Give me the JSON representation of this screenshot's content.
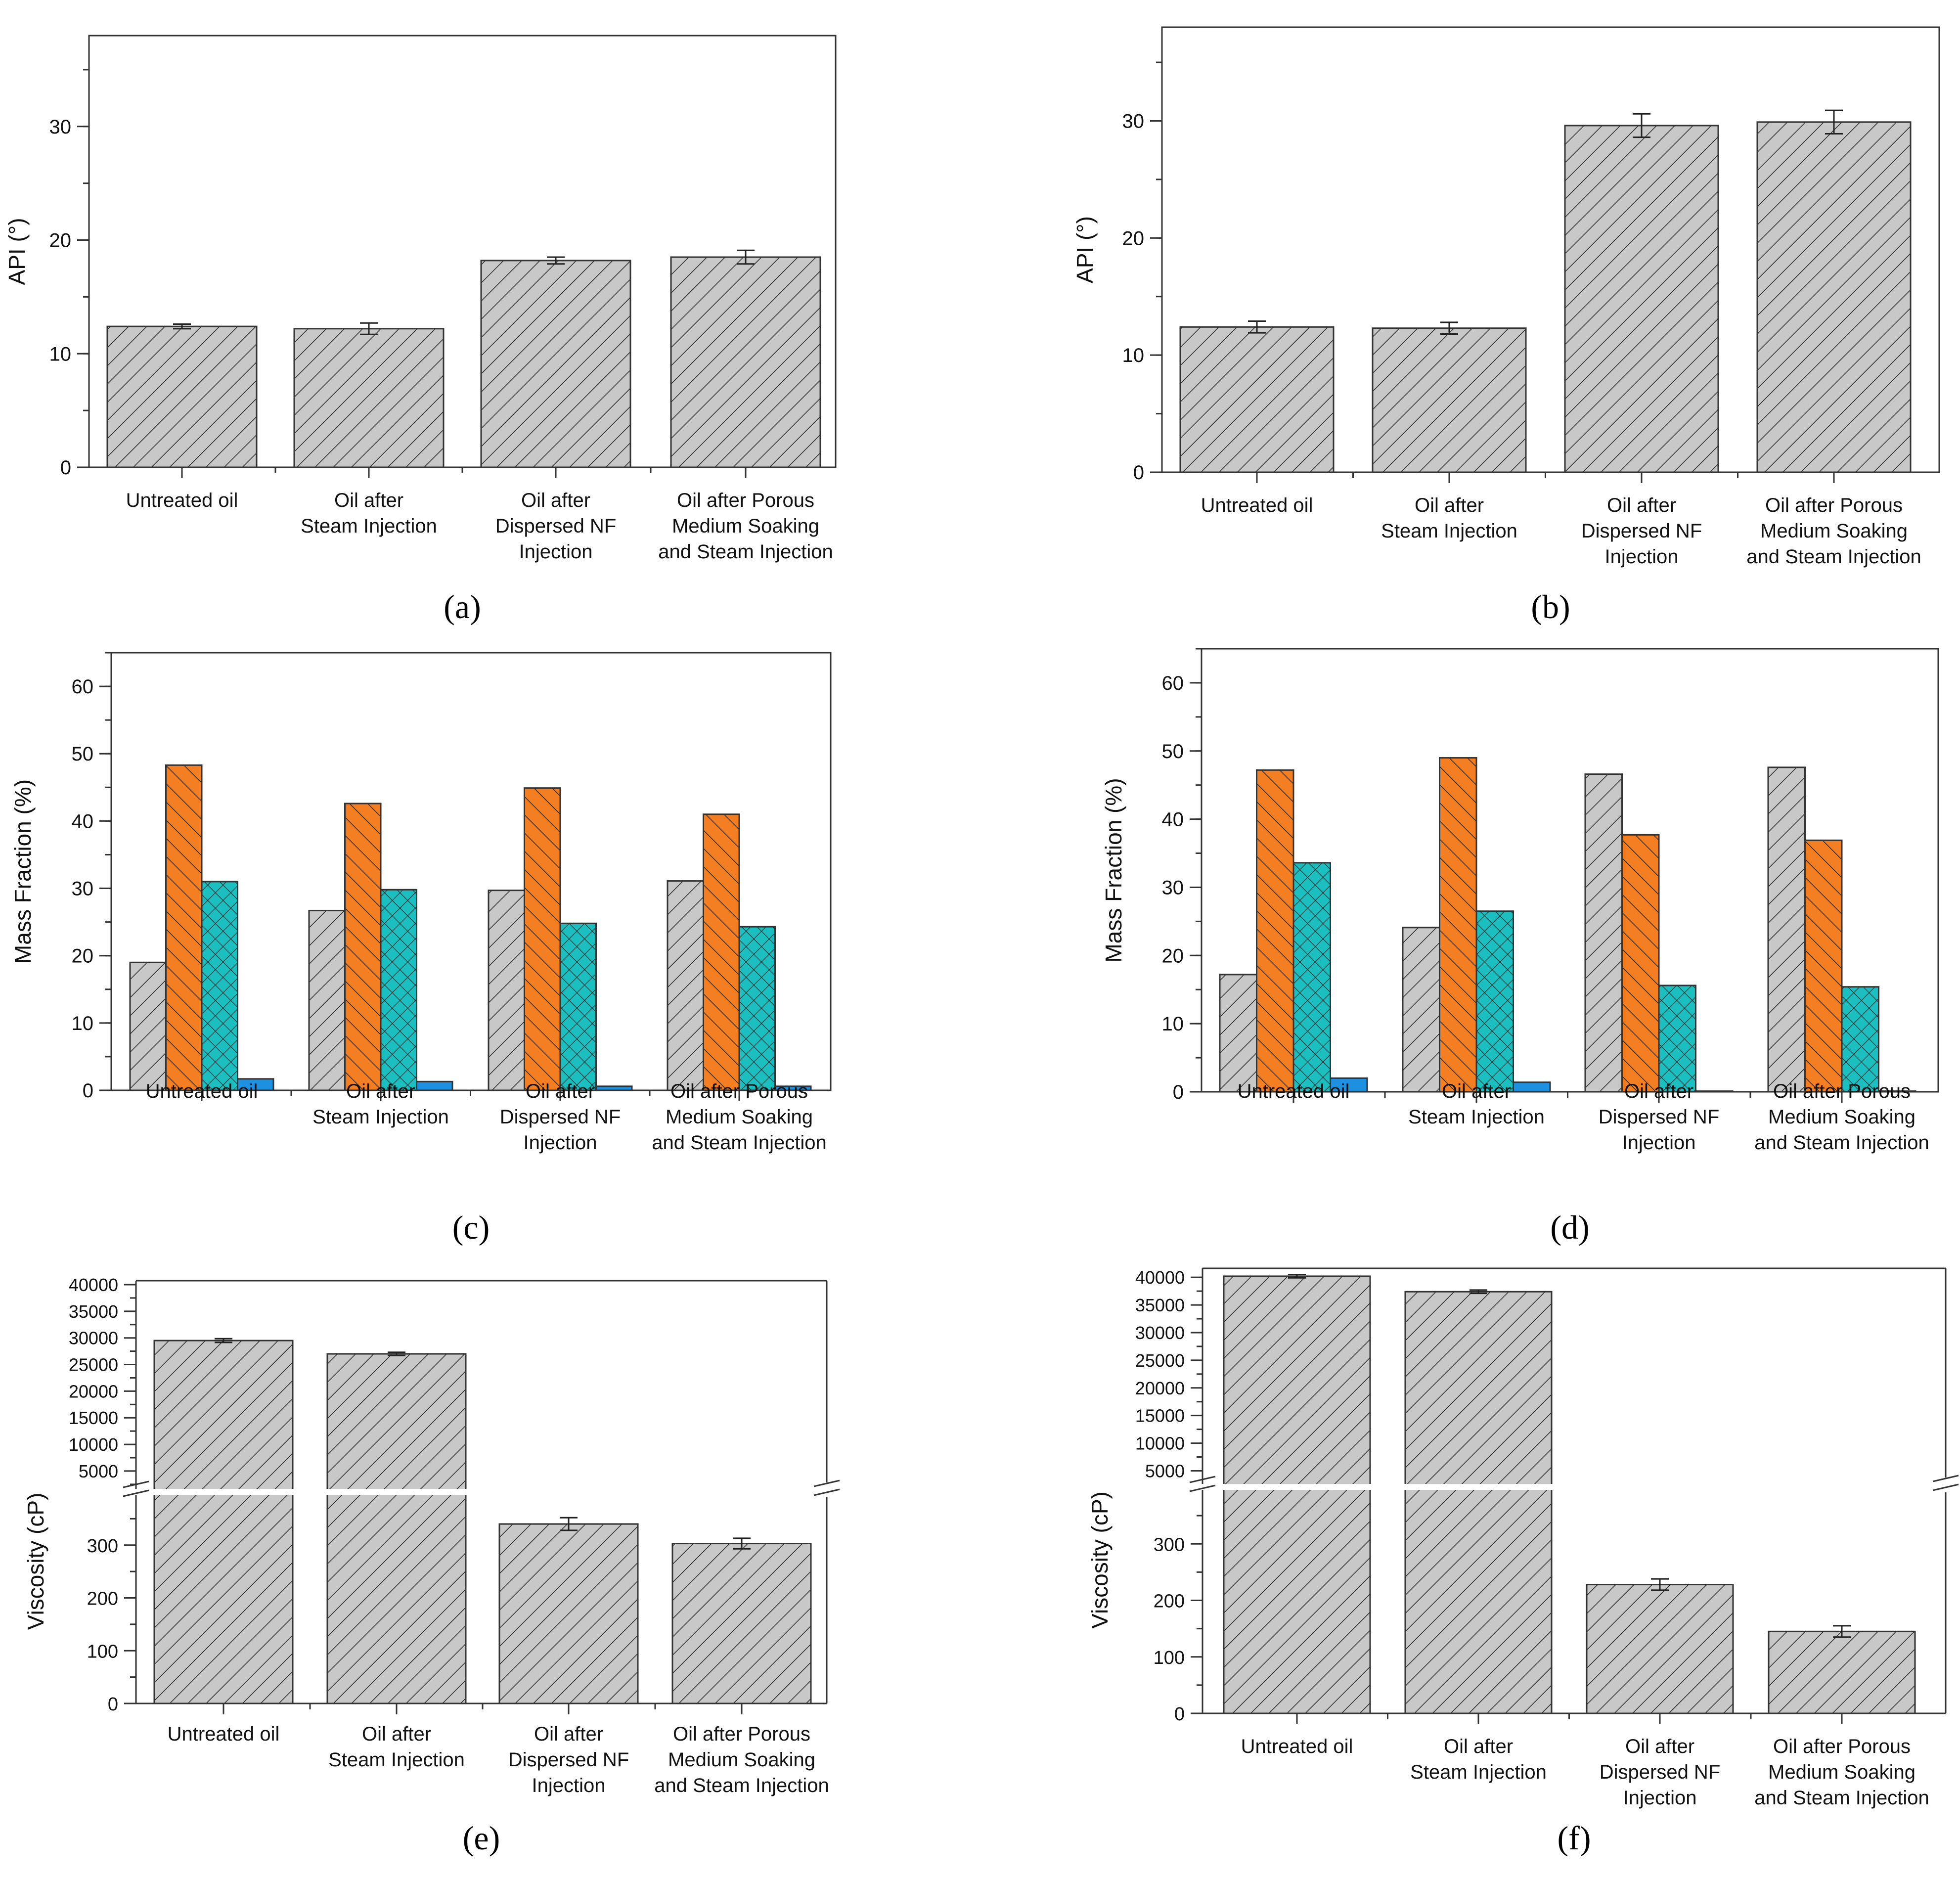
{
  "chart_data": [
    {
      "id": "a",
      "type": "bar",
      "panel_label": "(a)",
      "ylabel": "API (°)",
      "categories": [
        "Untreated oil",
        "Oil after Steam Injection",
        "Oil after Dispersed NF Injection",
        "Oil after Porous Medium Soaking and Steam Injection"
      ],
      "category_lines": [
        [
          "Untreated oil"
        ],
        [
          "Oil after",
          "Steam Injection"
        ],
        [
          "Oil after",
          "Dispersed NF",
          "Injection"
        ],
        [
          "Oil after Porous",
          "Medium Soaking",
          "and Steam Injection"
        ]
      ],
      "values": [
        12.4,
        12.2,
        18.2,
        18.5
      ],
      "error": [
        0.2,
        0.5,
        0.3,
        0.6
      ],
      "ylim": [
        0,
        38
      ],
      "yticks": [
        0,
        10,
        20,
        30
      ],
      "minor_step": 5,
      "grid": false,
      "pattern": "hatch-gray"
    },
    {
      "id": "b",
      "type": "bar",
      "panel_label": "(b)",
      "ylabel": "API (°)",
      "categories": [
        "Untreated oil",
        "Oil after Steam Injection",
        "Oil after Dispersed NF Injection",
        "Oil after Porous Medium Soaking and Steam Injection"
      ],
      "category_lines": [
        [
          "Untreated oil"
        ],
        [
          "Oil after",
          "Steam Injection"
        ],
        [
          "Oil after",
          "Dispersed NF",
          "Injection"
        ],
        [
          "Oil after Porous",
          "Medium Soaking",
          "and Steam Injection"
        ]
      ],
      "values": [
        12.4,
        12.3,
        29.6,
        29.9
      ],
      "error": [
        0.5,
        0.5,
        1.0,
        1.0
      ],
      "ylim": [
        0,
        38
      ],
      "yticks": [
        0,
        10,
        20,
        30
      ],
      "minor_step": 5,
      "grid": false,
      "pattern": "hatch-gray"
    },
    {
      "id": "c",
      "type": "bar",
      "panel_label": "(c)",
      "ylabel": "Mass Fraction (%)",
      "categories": [
        "Untreated oil",
        "Oil after Steam Injection",
        "Oil after Dispersed NF Injection",
        "Oil after Porous Medium Soaking and Steam Injection"
      ],
      "category_lines": [
        [
          "Untreated oil"
        ],
        [
          "Oil after",
          "Steam Injection"
        ],
        [
          "Oil after",
          "Dispersed NF",
          "Injection"
        ],
        [
          "Oil after Porous",
          "Medium Soaking",
          "and Steam Injection"
        ]
      ],
      "series": [
        {
          "values": [
            19.0,
            26.7,
            29.7,
            31.1
          ],
          "color": "#c8c8c8",
          "pattern": "hatch-gray"
        },
        {
          "values": [
            48.3,
            42.6,
            44.9,
            41.0
          ],
          "color": "#f47f22",
          "pattern": "hatch-orange"
        },
        {
          "values": [
            31.0,
            29.8,
            24.8,
            24.3
          ],
          "color": "#1bbfbf",
          "pattern": "cross-teal"
        },
        {
          "values": [
            1.7,
            1.3,
            0.6,
            0.6
          ],
          "color": "#1e90e0",
          "pattern": "solid-blue"
        }
      ],
      "ylim": [
        0,
        65
      ],
      "yticks": [
        0,
        10,
        20,
        30,
        40,
        50,
        60
      ],
      "minor_step": 5,
      "grid": false
    },
    {
      "id": "d",
      "type": "bar",
      "panel_label": "(d)",
      "ylabel": "Mass Fraction (%)",
      "categories": [
        "Untreated oil",
        "Oil after Steam Injection",
        "Oil after Dispersed NF Injection",
        "Oil after Porous Medium Soaking and Steam Injection"
      ],
      "category_lines": [
        [
          "Untreated oil"
        ],
        [
          "Oil after",
          "Steam Injection"
        ],
        [
          "Oil after",
          "Dispersed NF",
          "Injection"
        ],
        [
          "Oil after Porous",
          "Medium Soaking",
          "and Steam Injection"
        ]
      ],
      "series": [
        {
          "values": [
            17.2,
            24.1,
            46.6,
            47.6
          ],
          "color": "#c8c8c8",
          "pattern": "hatch-gray"
        },
        {
          "values": [
            47.2,
            49.0,
            37.7,
            36.9
          ],
          "color": "#f47f22",
          "pattern": "hatch-orange"
        },
        {
          "values": [
            33.6,
            26.5,
            15.6,
            15.4
          ],
          "color": "#1bbfbf",
          "pattern": "cross-teal"
        },
        {
          "values": [
            2.0,
            1.4,
            0.1,
            0.1
          ],
          "color": "#1e90e0",
          "pattern": "solid-blue"
        }
      ],
      "ylim": [
        0,
        65
      ],
      "yticks": [
        0,
        10,
        20,
        30,
        40,
        50,
        60
      ],
      "minor_step": 5,
      "grid": false
    },
    {
      "id": "e",
      "type": "bar",
      "panel_label": "(e)",
      "ylabel": "Viscosity (cP)",
      "categories": [
        "Untreated oil",
        "Oil after Steam Injection",
        "Oil after Dispersed NF Injection",
        "Oil after Porous Medium Soaking and Steam Injection"
      ],
      "category_lines": [
        [
          "Untreated oil"
        ],
        [
          "Oil after",
          "Steam Injection"
        ],
        [
          "Oil after",
          "Dispersed NF",
          "Injection"
        ],
        [
          "Oil after Porous",
          "Medium Soaking",
          "and Steam Injection"
        ]
      ],
      "values": [
        29500,
        27000,
        340,
        303
      ],
      "error": [
        350,
        300,
        12,
        10
      ],
      "axis_break": true,
      "ylim_lower": [
        0,
        400
      ],
      "ylim_upper": [
        1000,
        40000
      ],
      "yticks_lower": [
        0,
        100,
        200,
        300
      ],
      "yticks_upper": [
        5000,
        10000,
        15000,
        20000,
        25000,
        30000,
        35000,
        40000
      ],
      "grid": false,
      "pattern": "hatch-gray"
    },
    {
      "id": "f",
      "type": "bar",
      "panel_label": "(f)",
      "ylabel": "Viscosity (cP)",
      "categories": [
        "Untreated oil",
        "Oil after Steam Injection",
        "Oil after Dispersed NF Injection",
        "Oil after Porous Medium Soaking and Steam Injection"
      ],
      "category_lines": [
        [
          "Untreated oil"
        ],
        [
          "Oil after",
          "Steam Injection"
        ],
        [
          "Oil after",
          "Dispersed NF",
          "Injection"
        ],
        [
          "Oil after Porous",
          "Medium Soaking",
          "and Steam Injection"
        ]
      ],
      "values": [
        40200,
        37400,
        228,
        145
      ],
      "error": [
        300,
        300,
        10,
        10
      ],
      "axis_break": true,
      "ylim_lower": [
        0,
        400
      ],
      "ylim_upper": [
        2000,
        41000
      ],
      "yticks_lower": [
        0,
        100,
        200,
        300
      ],
      "yticks_upper": [
        5000,
        10000,
        15000,
        20000,
        25000,
        30000,
        35000,
        40000
      ],
      "grid": false,
      "pattern": "hatch-gray"
    }
  ]
}
